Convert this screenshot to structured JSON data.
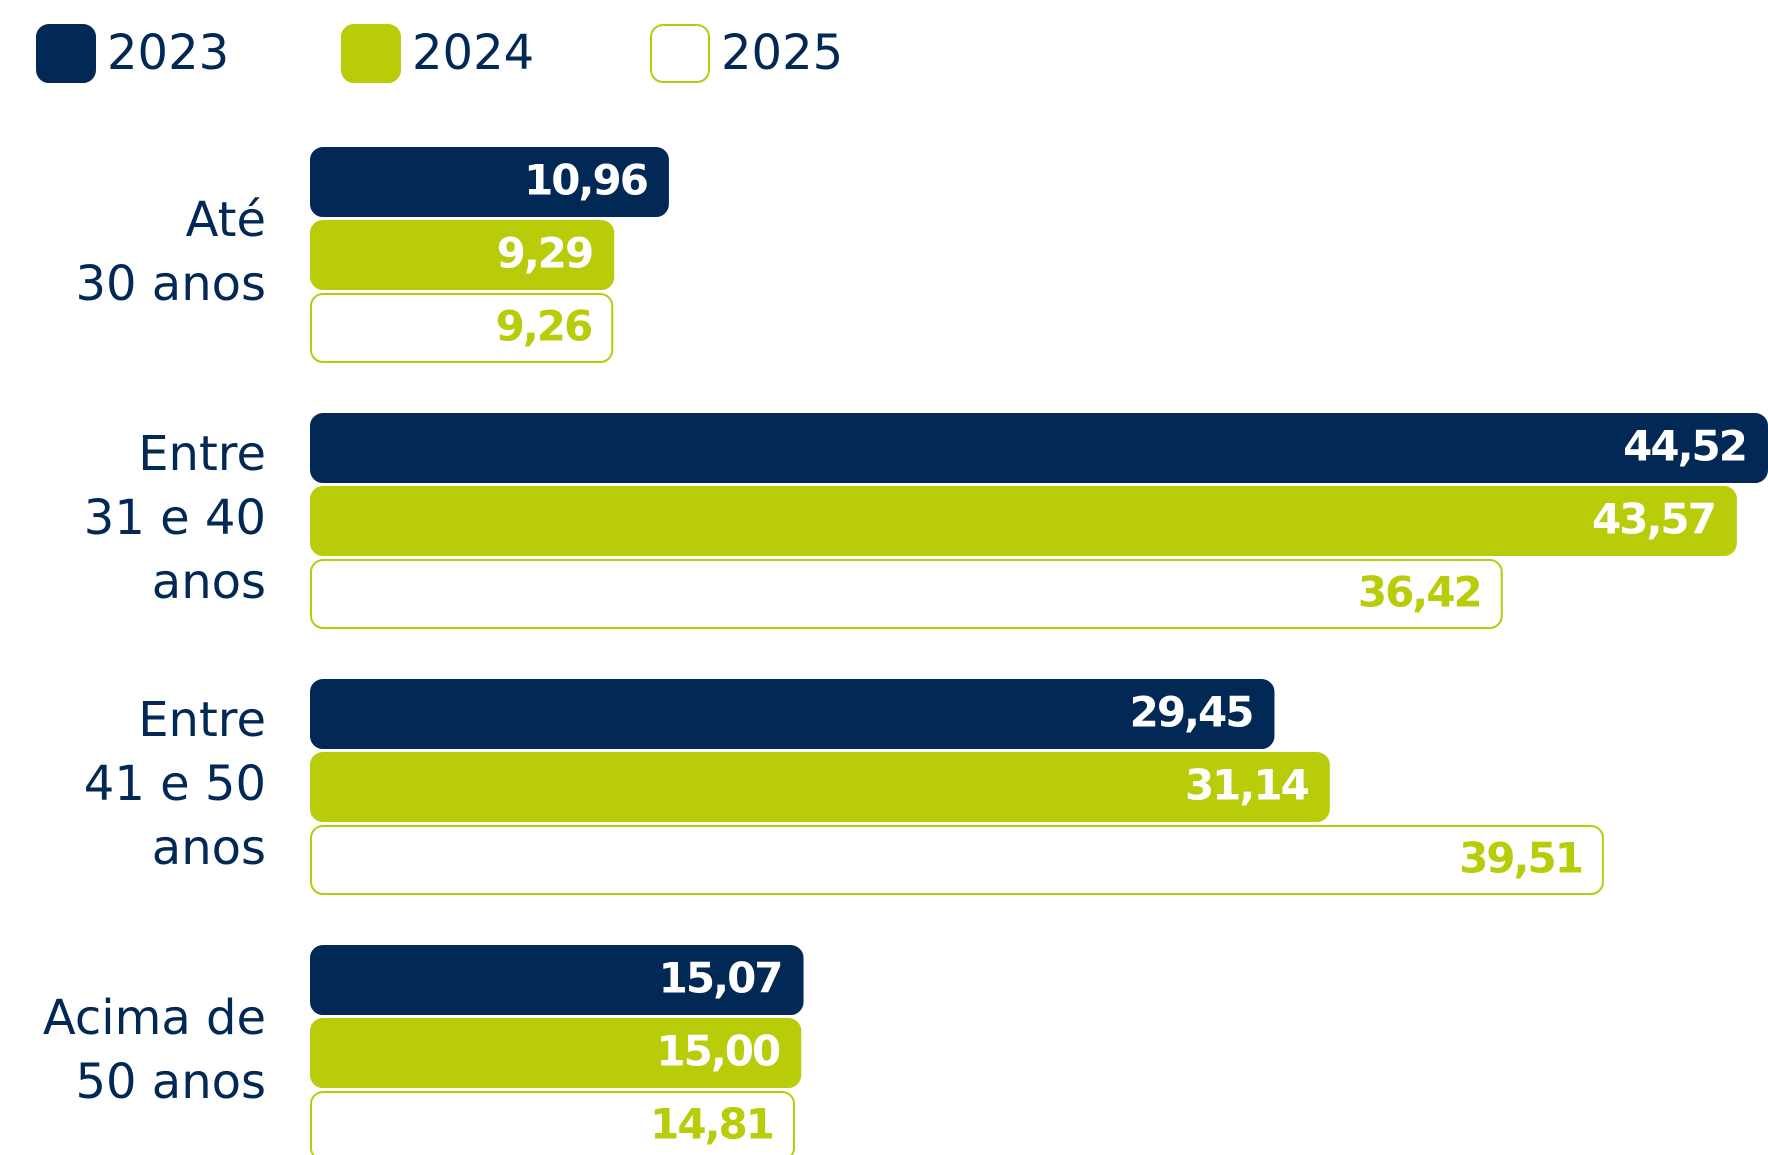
{
  "chart_data": {
    "type": "bar",
    "orientation": "horizontal",
    "categories": [
      "Até\n30 anos",
      "Entre\n31 e 40\nanos",
      "Entre\n41 e 50\nanos",
      "Acima de\n50 anos"
    ],
    "series": [
      {
        "name": "2023",
        "color": "#022856",
        "values": [
          10.96,
          44.52,
          29.45,
          15.07
        ],
        "value_labels": [
          "10,96",
          "44,52",
          "29,45",
          "15,07"
        ]
      },
      {
        "name": "2024",
        "color": "#b8cc0a",
        "values": [
          9.29,
          43.57,
          31.14,
          15.0
        ],
        "value_labels": [
          "9,29",
          "43,57",
          "31,14",
          "15,00"
        ]
      },
      {
        "name": "2025",
        "color": "#ffffff",
        "values": [
          9.26,
          36.42,
          39.51,
          14.81
        ],
        "value_labels": [
          "9,26",
          "36,42",
          "39,51",
          "14,81"
        ]
      }
    ],
    "legend": "top-left"
  }
}
